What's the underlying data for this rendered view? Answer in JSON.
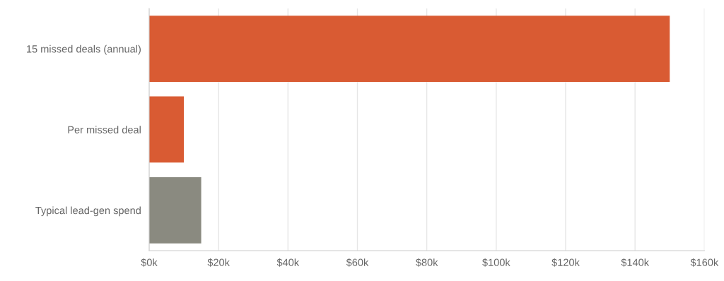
{
  "chart_data": {
    "type": "bar",
    "orientation": "horizontal",
    "categories": [
      "15 missed deals (annual)",
      "Per missed deal",
      "Typical lead-gen spend"
    ],
    "values": [
      150000,
      10000,
      15000
    ],
    "colors": [
      "#d95b33",
      "#d95b33",
      "#8a8a80"
    ],
    "xlim": [
      0,
      160000
    ],
    "xticks": [
      {
        "value": 0,
        "label": "$0k"
      },
      {
        "value": 20000,
        "label": "$20k"
      },
      {
        "value": 40000,
        "label": "$40k"
      },
      {
        "value": 60000,
        "label": "$60k"
      },
      {
        "value": 80000,
        "label": "$80k"
      },
      {
        "value": 100000,
        "label": "$100k"
      },
      {
        "value": 120000,
        "label": "$120k"
      },
      {
        "value": 140000,
        "label": "$140k"
      },
      {
        "value": 160000,
        "label": "$160k"
      }
    ],
    "grid": "x"
  }
}
